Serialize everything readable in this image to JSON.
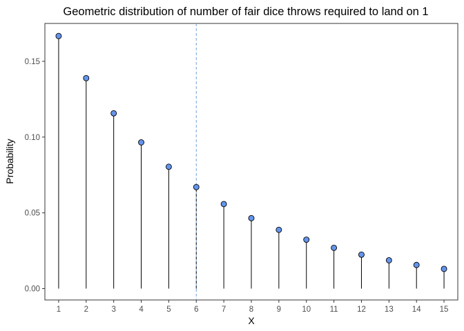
{
  "chart_data": {
    "type": "lollipop",
    "title": "Geometric distribution of number of fair dice throws required to land on 1",
    "xlabel": "X",
    "ylabel": "Probability",
    "x": [
      1,
      2,
      3,
      4,
      5,
      6,
      7,
      8,
      9,
      10,
      11,
      12,
      13,
      14,
      15
    ],
    "values": [
      0.1667,
      0.1389,
      0.1157,
      0.0965,
      0.0804,
      0.067,
      0.0558,
      0.0465,
      0.0388,
      0.0323,
      0.0269,
      0.0224,
      0.0187,
      0.0156,
      0.013
    ],
    "xlim": [
      0.5,
      15.5
    ],
    "ylim": [
      -0.0075,
      0.175
    ],
    "yticks": [
      0.0,
      0.05,
      0.1,
      0.15
    ],
    "ytick_labels": [
      "0.00",
      "0.05",
      "0.10",
      "0.15"
    ],
    "xtick_labels": [
      "1",
      "2",
      "3",
      "4",
      "5",
      "6",
      "7",
      "8",
      "9",
      "10",
      "11",
      "12",
      "13",
      "14",
      "15"
    ],
    "reference_line": {
      "x": 6,
      "style": "dashed",
      "color": "#6fa0d8"
    },
    "highlight_stem": {
      "x": 6,
      "style": "dashed"
    },
    "point_color": "#6495ed",
    "point_edge_color": "#000000",
    "stem_color": "#000000",
    "grid": false,
    "legend": "none"
  }
}
